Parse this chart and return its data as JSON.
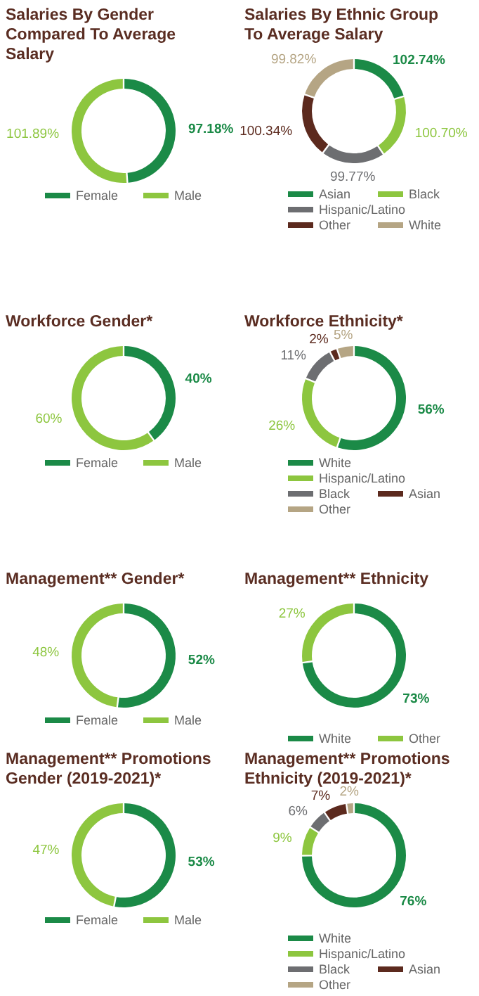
{
  "chart_data": [
    {
      "type": "donut",
      "title": "Salaries By Gender Compared To Average Salary",
      "categories": [
        "Female",
        "Male"
      ],
      "values": [
        97.18,
        101.89
      ],
      "value_labels": [
        "97.18%",
        "101.89%"
      ],
      "colors": [
        "#1b8a47",
        "#8dc63f"
      ],
      "legend": "bottom"
    },
    {
      "type": "donut",
      "title": "Salaries By Ethnic Group To Average Salary",
      "categories": [
        "Asian",
        "Black",
        "Hispanic/Latino",
        "Other",
        "White"
      ],
      "values": [
        102.74,
        100.7,
        99.77,
        100.34,
        99.82
      ],
      "value_labels": [
        "102.74%",
        "100.70%",
        "99.77%",
        "100.34%",
        "99.82%"
      ],
      "colors": [
        "#1b8a47",
        "#8dc63f",
        "#6d6e71",
        "#5c2a1e",
        "#b5a584"
      ],
      "legend": "bottom"
    },
    {
      "type": "donut",
      "title": "Workforce Gender*",
      "categories": [
        "Female",
        "Male"
      ],
      "values": [
        40,
        60
      ],
      "value_labels": [
        "40%",
        "60%"
      ],
      "colors": [
        "#1b8a47",
        "#8dc63f"
      ],
      "legend": "bottom"
    },
    {
      "type": "donut",
      "title": "Workforce Ethnicity*",
      "categories": [
        "White",
        "Hispanic/Latino",
        "Black",
        "Asian",
        "Other"
      ],
      "values": [
        56,
        26,
        11,
        2,
        5
      ],
      "value_labels": [
        "56%",
        "26%",
        "11%",
        "2%",
        "5%"
      ],
      "colors": [
        "#1b8a47",
        "#8dc63f",
        "#6d6e71",
        "#5c2a1e",
        "#b5a584"
      ],
      "legend": "bottom"
    },
    {
      "type": "donut",
      "title": "Management** Gender*",
      "categories": [
        "Female",
        "Male"
      ],
      "values": [
        52,
        48
      ],
      "value_labels": [
        "52%",
        "48%"
      ],
      "colors": [
        "#1b8a47",
        "#8dc63f"
      ],
      "legend": "bottom"
    },
    {
      "type": "donut",
      "title": "Management** Ethnicity",
      "categories": [
        "White",
        "Other"
      ],
      "values": [
        73,
        27
      ],
      "value_labels": [
        "73%",
        "27%"
      ],
      "colors": [
        "#1b8a47",
        "#8dc63f"
      ],
      "legend": "bottom"
    },
    {
      "type": "donut",
      "title": "Management** Promotions Gender (2019-2021)*",
      "categories": [
        "Female",
        "Male"
      ],
      "values": [
        53,
        47
      ],
      "value_labels": [
        "53%",
        "47%"
      ],
      "colors": [
        "#1b8a47",
        "#8dc63f"
      ],
      "legend": "bottom"
    },
    {
      "type": "donut",
      "title": "Management** Promotions Ethnicity (2019-2021)*",
      "categories": [
        "White",
        "Hispanic/Latino",
        "Black",
        "Asian",
        "Other"
      ],
      "values": [
        76,
        9,
        6,
        7,
        2
      ],
      "value_labels": [
        "76%",
        "9%",
        "6%",
        "7%",
        "2%"
      ],
      "colors": [
        "#1b8a47",
        "#8dc63f",
        "#6d6e71",
        "#5c2a1e",
        "#b5a584"
      ],
      "legend": "bottom"
    }
  ]
}
